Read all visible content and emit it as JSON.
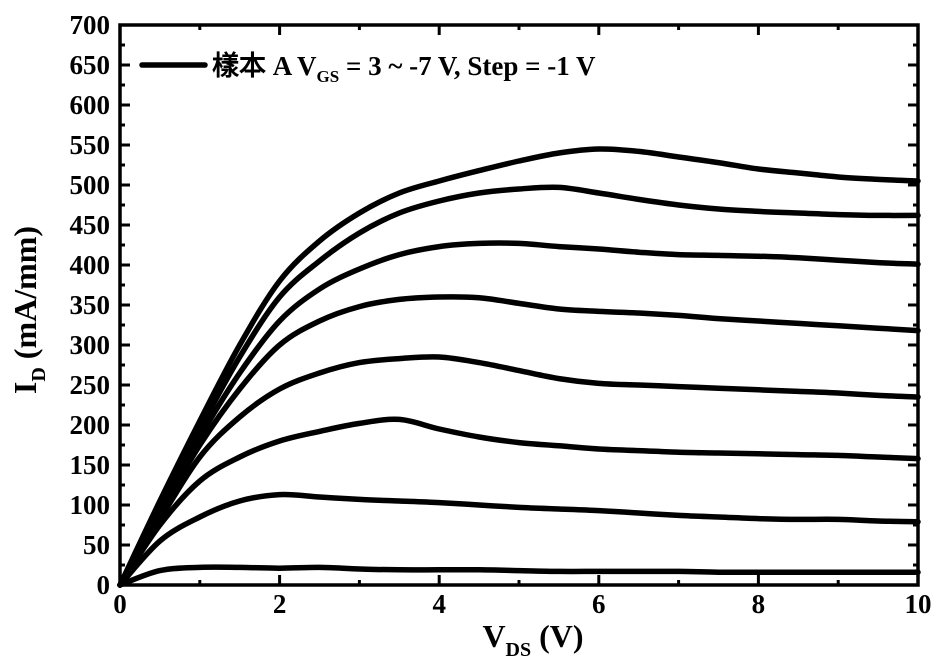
{
  "chart_data": {
    "type": "line",
    "xlabel": {
      "main": "V",
      "sub": "DS",
      "suffix": " (V)"
    },
    "ylabel": {
      "main": "I",
      "sub": "D",
      "suffix": " (mA/mm)"
    },
    "xlim": [
      0,
      10
    ],
    "ylim": [
      0,
      700
    ],
    "xticks": [
      0,
      2,
      4,
      6,
      8,
      10
    ],
    "yticks": [
      0,
      50,
      100,
      150,
      200,
      250,
      300,
      350,
      400,
      450,
      500,
      550,
      600,
      650,
      700
    ],
    "grid": false,
    "legend": {
      "position": "top-left",
      "label": {
        "pre": "樣本 A   V",
        "sub": "GS",
        "post": " = 3 ~ -7 V, Step = -1 V"
      }
    },
    "line_color": "#000000",
    "series": [
      {
        "x": [
          0,
          0.5,
          1,
          1.5,
          2,
          2.5,
          3,
          3.5,
          4,
          4.5,
          5,
          5.5,
          6,
          6.5,
          7,
          7.5,
          8,
          8.5,
          9,
          9.5,
          10
        ],
        "values": [
          0,
          105,
          205,
          300,
          380,
          430,
          465,
          490,
          505,
          518,
          530,
          540,
          545,
          542,
          535,
          528,
          520,
          515,
          510,
          507,
          505
        ]
      },
      {
        "x": [
          0,
          0.5,
          1,
          1.5,
          2,
          2.5,
          3,
          3.5,
          4,
          4.5,
          5,
          5.5,
          6,
          6.5,
          7,
          7.5,
          8,
          8.5,
          9,
          9.5,
          10
        ],
        "values": [
          0,
          100,
          195,
          285,
          360,
          405,
          440,
          465,
          480,
          490,
          495,
          497,
          490,
          482,
          475,
          470,
          467,
          465,
          463,
          462,
          462
        ]
      },
      {
        "x": [
          0,
          0.5,
          1,
          1.5,
          2,
          2.5,
          3,
          3.5,
          4,
          4.5,
          5,
          5.5,
          6,
          6.5,
          7,
          7.5,
          8,
          8.5,
          9,
          9.5,
          10
        ],
        "values": [
          0,
          95,
          185,
          265,
          330,
          370,
          395,
          413,
          423,
          427,
          427,
          423,
          420,
          416,
          413,
          412,
          411,
          409,
          406,
          403,
          401
        ]
      },
      {
        "x": [
          0,
          0.5,
          1,
          1.5,
          2,
          2.5,
          3,
          3.5,
          4,
          4.5,
          5,
          5.5,
          6,
          6.5,
          7,
          7.5,
          8,
          8.5,
          9,
          9.5,
          10
        ],
        "values": [
          0,
          90,
          175,
          245,
          300,
          330,
          348,
          357,
          360,
          359,
          352,
          345,
          342,
          340,
          337,
          333,
          330,
          327,
          324,
          321,
          318
        ]
      },
      {
        "x": [
          0,
          0.5,
          1,
          1.5,
          2,
          2.5,
          3,
          3.5,
          4,
          4.5,
          5,
          5.5,
          6,
          6.5,
          7,
          7.5,
          8,
          8.5,
          9,
          9.5,
          10
        ],
        "values": [
          0,
          82,
          160,
          210,
          245,
          265,
          278,
          283,
          285,
          278,
          268,
          258,
          252,
          250,
          248,
          246,
          244,
          242,
          240,
          237,
          235
        ]
      },
      {
        "x": [
          0,
          0.5,
          1,
          1.5,
          2,
          2.5,
          3,
          3.5,
          4,
          4.5,
          5,
          5.5,
          6,
          6.5,
          7,
          7.5,
          8,
          8.5,
          9,
          9.5,
          10
        ],
        "values": [
          0,
          75,
          130,
          160,
          180,
          192,
          202,
          207,
          195,
          185,
          178,
          174,
          170,
          168,
          166,
          165,
          164,
          163,
          162,
          160,
          158
        ]
      },
      {
        "x": [
          0,
          0.5,
          1,
          1.5,
          2,
          2.5,
          3,
          3.5,
          4,
          4.5,
          5,
          5.5,
          6,
          6.5,
          7,
          7.5,
          8,
          8.5,
          9,
          9.5,
          10
        ],
        "values": [
          0,
          55,
          85,
          105,
          113,
          110,
          107,
          105,
          103,
          100,
          97,
          95,
          93,
          90,
          87,
          85,
          83,
          82,
          82,
          80,
          79
        ]
      },
      {
        "x": [
          0,
          0.5,
          1,
          1.5,
          2,
          2.5,
          3,
          3.5,
          4,
          4.5,
          5,
          5.5,
          6,
          6.5,
          7,
          7.5,
          8,
          8.5,
          9,
          9.5,
          10
        ],
        "values": [
          0,
          18,
          22,
          22,
          21,
          22,
          20,
          19,
          19,
          19,
          18,
          17,
          17,
          17,
          17,
          16,
          16,
          16,
          16,
          16,
          16
        ]
      }
    ]
  }
}
